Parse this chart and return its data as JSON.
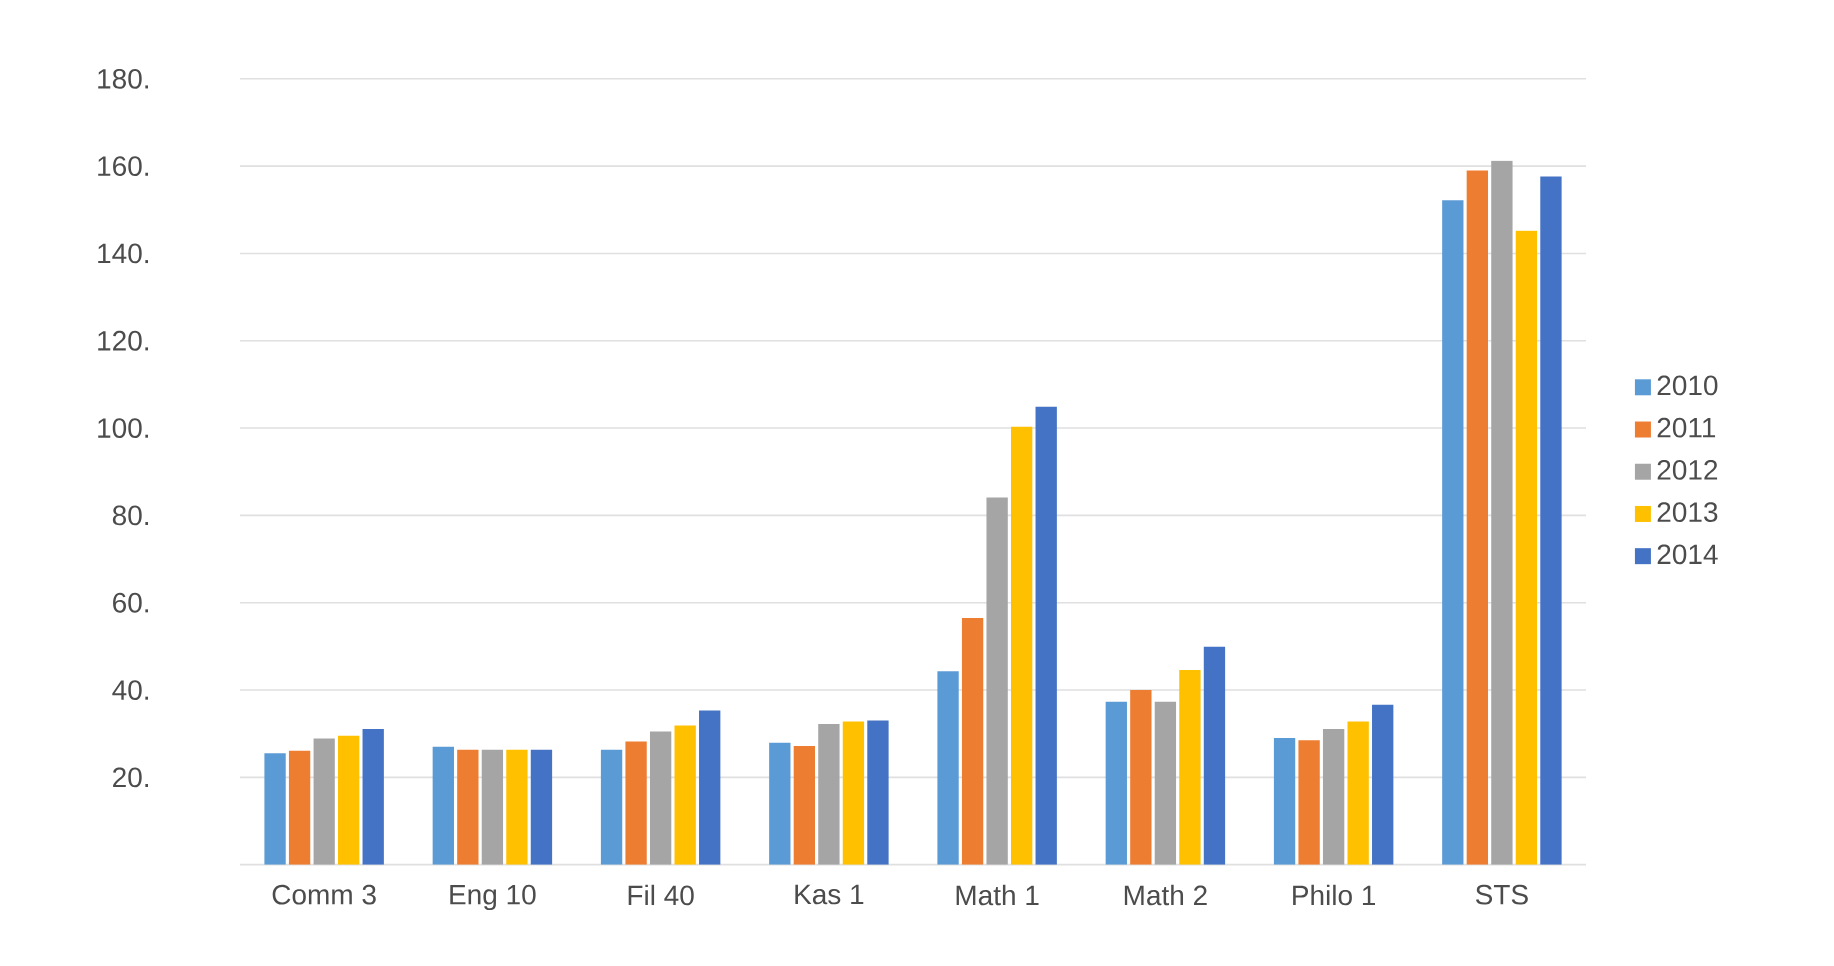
{
  "chart_data": {
    "type": "bar",
    "categories": [
      "Comm 3",
      "Eng 10",
      "Fil 40",
      "Kas 1",
      "Math 1",
      "Math 2",
      "Philo 1",
      "STS"
    ],
    "series": [
      {
        "name": "2010",
        "color": "#5b9bd5",
        "values": [
          25.5,
          27.0,
          26.3,
          27.9,
          44.3,
          37.3,
          29.0,
          152.2
        ]
      },
      {
        "name": "2011",
        "color": "#ed7d31",
        "values": [
          26.1,
          26.3,
          28.2,
          27.2,
          56.5,
          40.0,
          28.5,
          159.0
        ]
      },
      {
        "name": "2012",
        "color": "#a5a5a5",
        "values": [
          28.9,
          26.3,
          30.5,
          32.2,
          84.1,
          37.3,
          31.1,
          161.2
        ]
      },
      {
        "name": "2013",
        "color": "#ffc000",
        "values": [
          29.5,
          26.3,
          31.9,
          32.8,
          100.3,
          44.6,
          32.8,
          145.2
        ]
      },
      {
        "name": "2014",
        "color": "#4472c4",
        "values": [
          31.1,
          26.3,
          35.3,
          33.0,
          104.9,
          49.9,
          36.6,
          157.6
        ]
      }
    ],
    "ylim": [
      0,
      180
    ],
    "yticks": [
      {
        "value": 0,
        "label": null
      },
      {
        "value": 20,
        "label": "20."
      },
      {
        "value": 40,
        "label": "40."
      },
      {
        "value": 60,
        "label": "60."
      },
      {
        "value": 80,
        "label": "80."
      },
      {
        "value": 100,
        "label": "100."
      },
      {
        "value": 120,
        "label": "120."
      },
      {
        "value": 140,
        "label": "140."
      },
      {
        "value": 160,
        "label": "160."
      },
      {
        "value": 180,
        "label": "180."
      }
    ],
    "grid": "y",
    "legend": "right"
  }
}
